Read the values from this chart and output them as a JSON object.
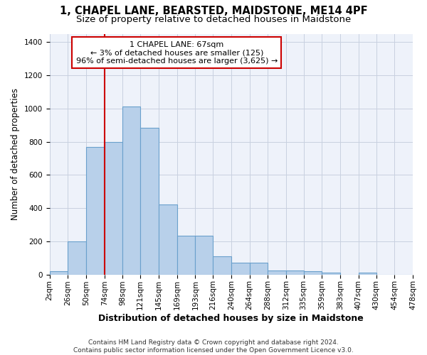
{
  "title": "1, CHAPEL LANE, BEARSTED, MAIDSTONE, ME14 4PF",
  "subtitle": "Size of property relative to detached houses in Maidstone",
  "xlabel": "Distribution of detached houses by size in Maidstone",
  "ylabel": "Number of detached properties",
  "bar_color": "#b8d0ea",
  "bar_edge_color": "#6aa0cc",
  "background_color": "#eef2fa",
  "grid_color": "#c8d0e0",
  "vline_x": 74,
  "vline_color": "#cc0000",
  "annotation_lines": [
    "1 CHAPEL LANE: 67sqm",
    "← 3% of detached houses are smaller (125)",
    "96% of semi-detached houses are larger (3,625) →"
  ],
  "bin_edges": [
    2,
    26,
    50,
    74,
    98,
    121,
    145,
    169,
    193,
    216,
    240,
    264,
    288,
    312,
    335,
    359,
    383,
    407,
    430,
    454,
    478
  ],
  "bar_heights": [
    20,
    200,
    770,
    800,
    1010,
    885,
    420,
    235,
    235,
    110,
    70,
    70,
    25,
    25,
    20,
    10,
    0,
    10,
    0,
    0
  ],
  "ylim": [
    0,
    1450
  ],
  "yticks": [
    0,
    200,
    400,
    600,
    800,
    1000,
    1200,
    1400
  ],
  "footer_text": "Contains HM Land Registry data © Crown copyright and database right 2024.\nContains public sector information licensed under the Open Government Licence v3.0.",
  "annot_box_color": "#ffffff",
  "annot_box_edge": "#cc0000",
  "title_fontsize": 10.5,
  "subtitle_fontsize": 9.5,
  "tick_fontsize": 7.5,
  "ylabel_fontsize": 8.5,
  "xlabel_fontsize": 9,
  "footer_fontsize": 6.5
}
